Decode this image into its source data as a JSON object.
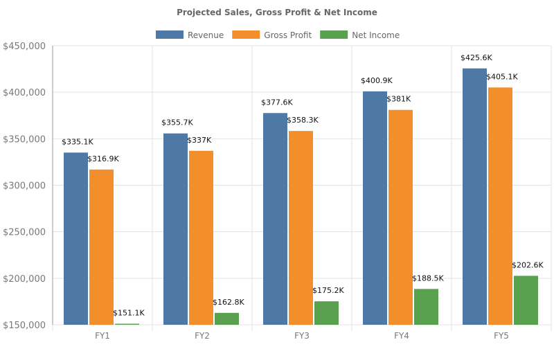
{
  "chart_data": {
    "type": "bar",
    "title": "Projected Sales, Gross Profit & Net Income",
    "xlabel": "",
    "ylabel": "",
    "categories": [
      "FY1",
      "FY2",
      "FY3",
      "FY4",
      "FY5"
    ],
    "series": [
      {
        "name": "Revenue",
        "color": "#4e79a7",
        "values": [
          335100,
          355700,
          377600,
          400900,
          425600
        ],
        "labels": [
          "$335.1K",
          "$355.7K",
          "$377.6K",
          "$400.9K",
          "$425.6K"
        ]
      },
      {
        "name": "Gross Profit",
        "color": "#f28e2b",
        "values": [
          316900,
          337000,
          358300,
          381000,
          405100
        ],
        "labels": [
          "$316.9K",
          "$337K",
          "$358.3K",
          "$381K",
          "$405.1K"
        ]
      },
      {
        "name": "Net Income",
        "color": "#59a14f",
        "values": [
          151100,
          162800,
          175200,
          188500,
          202600
        ],
        "labels": [
          "$151.1K",
          "$162.8K",
          "$175.2K",
          "$188.5K",
          "$202.6K"
        ]
      }
    ],
    "ylim": [
      150000,
      450000
    ],
    "yticks": [
      150000,
      200000,
      250000,
      300000,
      350000,
      400000,
      450000
    ],
    "ytick_labels": [
      "$150,000",
      "$200,000",
      "$250,000",
      "$300,000",
      "$350,000",
      "$400,000",
      "$450,000"
    ],
    "grid": true,
    "legend": "top"
  }
}
